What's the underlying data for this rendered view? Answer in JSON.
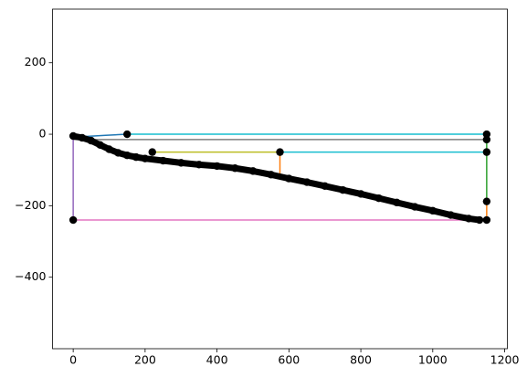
{
  "chart_data": {
    "type": "line",
    "xlim": [
      -57.5,
      1207.5
    ],
    "ylim": [
      -600,
      350
    ],
    "xticks": [
      0,
      200,
      400,
      600,
      800,
      1000,
      1200
    ],
    "yticks": [
      {
        "value": -400,
        "label": "−400"
      },
      {
        "value": -200,
        "label": "−200"
      },
      0,
      200
    ],
    "series": [
      {
        "color": "#1f77b4",
        "x": [
          0,
          40,
          90,
          150
        ],
        "values": [
          -5,
          -6,
          -3,
          0
        ]
      },
      {
        "color": "#17becf",
        "x": [
          150,
          1150
        ],
        "values": [
          0,
          0
        ]
      },
      {
        "color": "#7f7f7f",
        "x": [
          0,
          1150
        ],
        "values": [
          -15,
          -15
        ]
      },
      {
        "color": "#bcbd22",
        "x": [
          220,
          575
        ],
        "values": [
          -50,
          -50
        ]
      },
      {
        "color": "#17becf",
        "x": [
          575,
          1150
        ],
        "values": [
          -50,
          -50
        ]
      },
      {
        "color": "#ff7f0e",
        "x": [
          575,
          575
        ],
        "values": [
          -50,
          -108
        ]
      },
      {
        "color": "#2ca02c",
        "x": [
          1150,
          1150
        ],
        "values": [
          -15,
          -188
        ]
      },
      {
        "color": "#ff7f0e",
        "x": [
          1150,
          1150
        ],
        "values": [
          -188,
          -240
        ]
      },
      {
        "color": "#9467bd",
        "x": [
          0,
          0
        ],
        "values": [
          -5,
          -240
        ]
      },
      {
        "color": "#e377c2",
        "x": [
          0,
          1150
        ],
        "values": [
          -240,
          -240
        ]
      },
      {
        "color": "#000000",
        "linewidth": 7,
        "marker": true,
        "x": [
          0,
          25,
          50,
          75,
          100,
          125,
          150,
          175,
          200,
          250,
          300,
          350,
          400,
          450,
          500,
          550,
          600,
          650,
          700,
          750,
          800,
          850,
          900,
          950,
          1000,
          1050,
          1100,
          1130
        ],
        "values": [
          -5,
          -10,
          -18,
          -30,
          -42,
          -52,
          -59,
          -64,
          -68,
          -74,
          -80,
          -85,
          -89,
          -95,
          -103,
          -113,
          -124,
          -134,
          -145,
          -156,
          -167,
          -179,
          -191,
          -203,
          -214,
          -226,
          -236,
          -240
        ]
      },
      {
        "color": "#000000",
        "linestyle": "none",
        "marker": true,
        "x": [
          150,
          220,
          575,
          1150,
          1150,
          1150,
          1150,
          1150,
          0
        ],
        "values": [
          0,
          -50,
          -50,
          0,
          -15,
          -50,
          -188,
          -240,
          -240
        ]
      }
    ]
  }
}
